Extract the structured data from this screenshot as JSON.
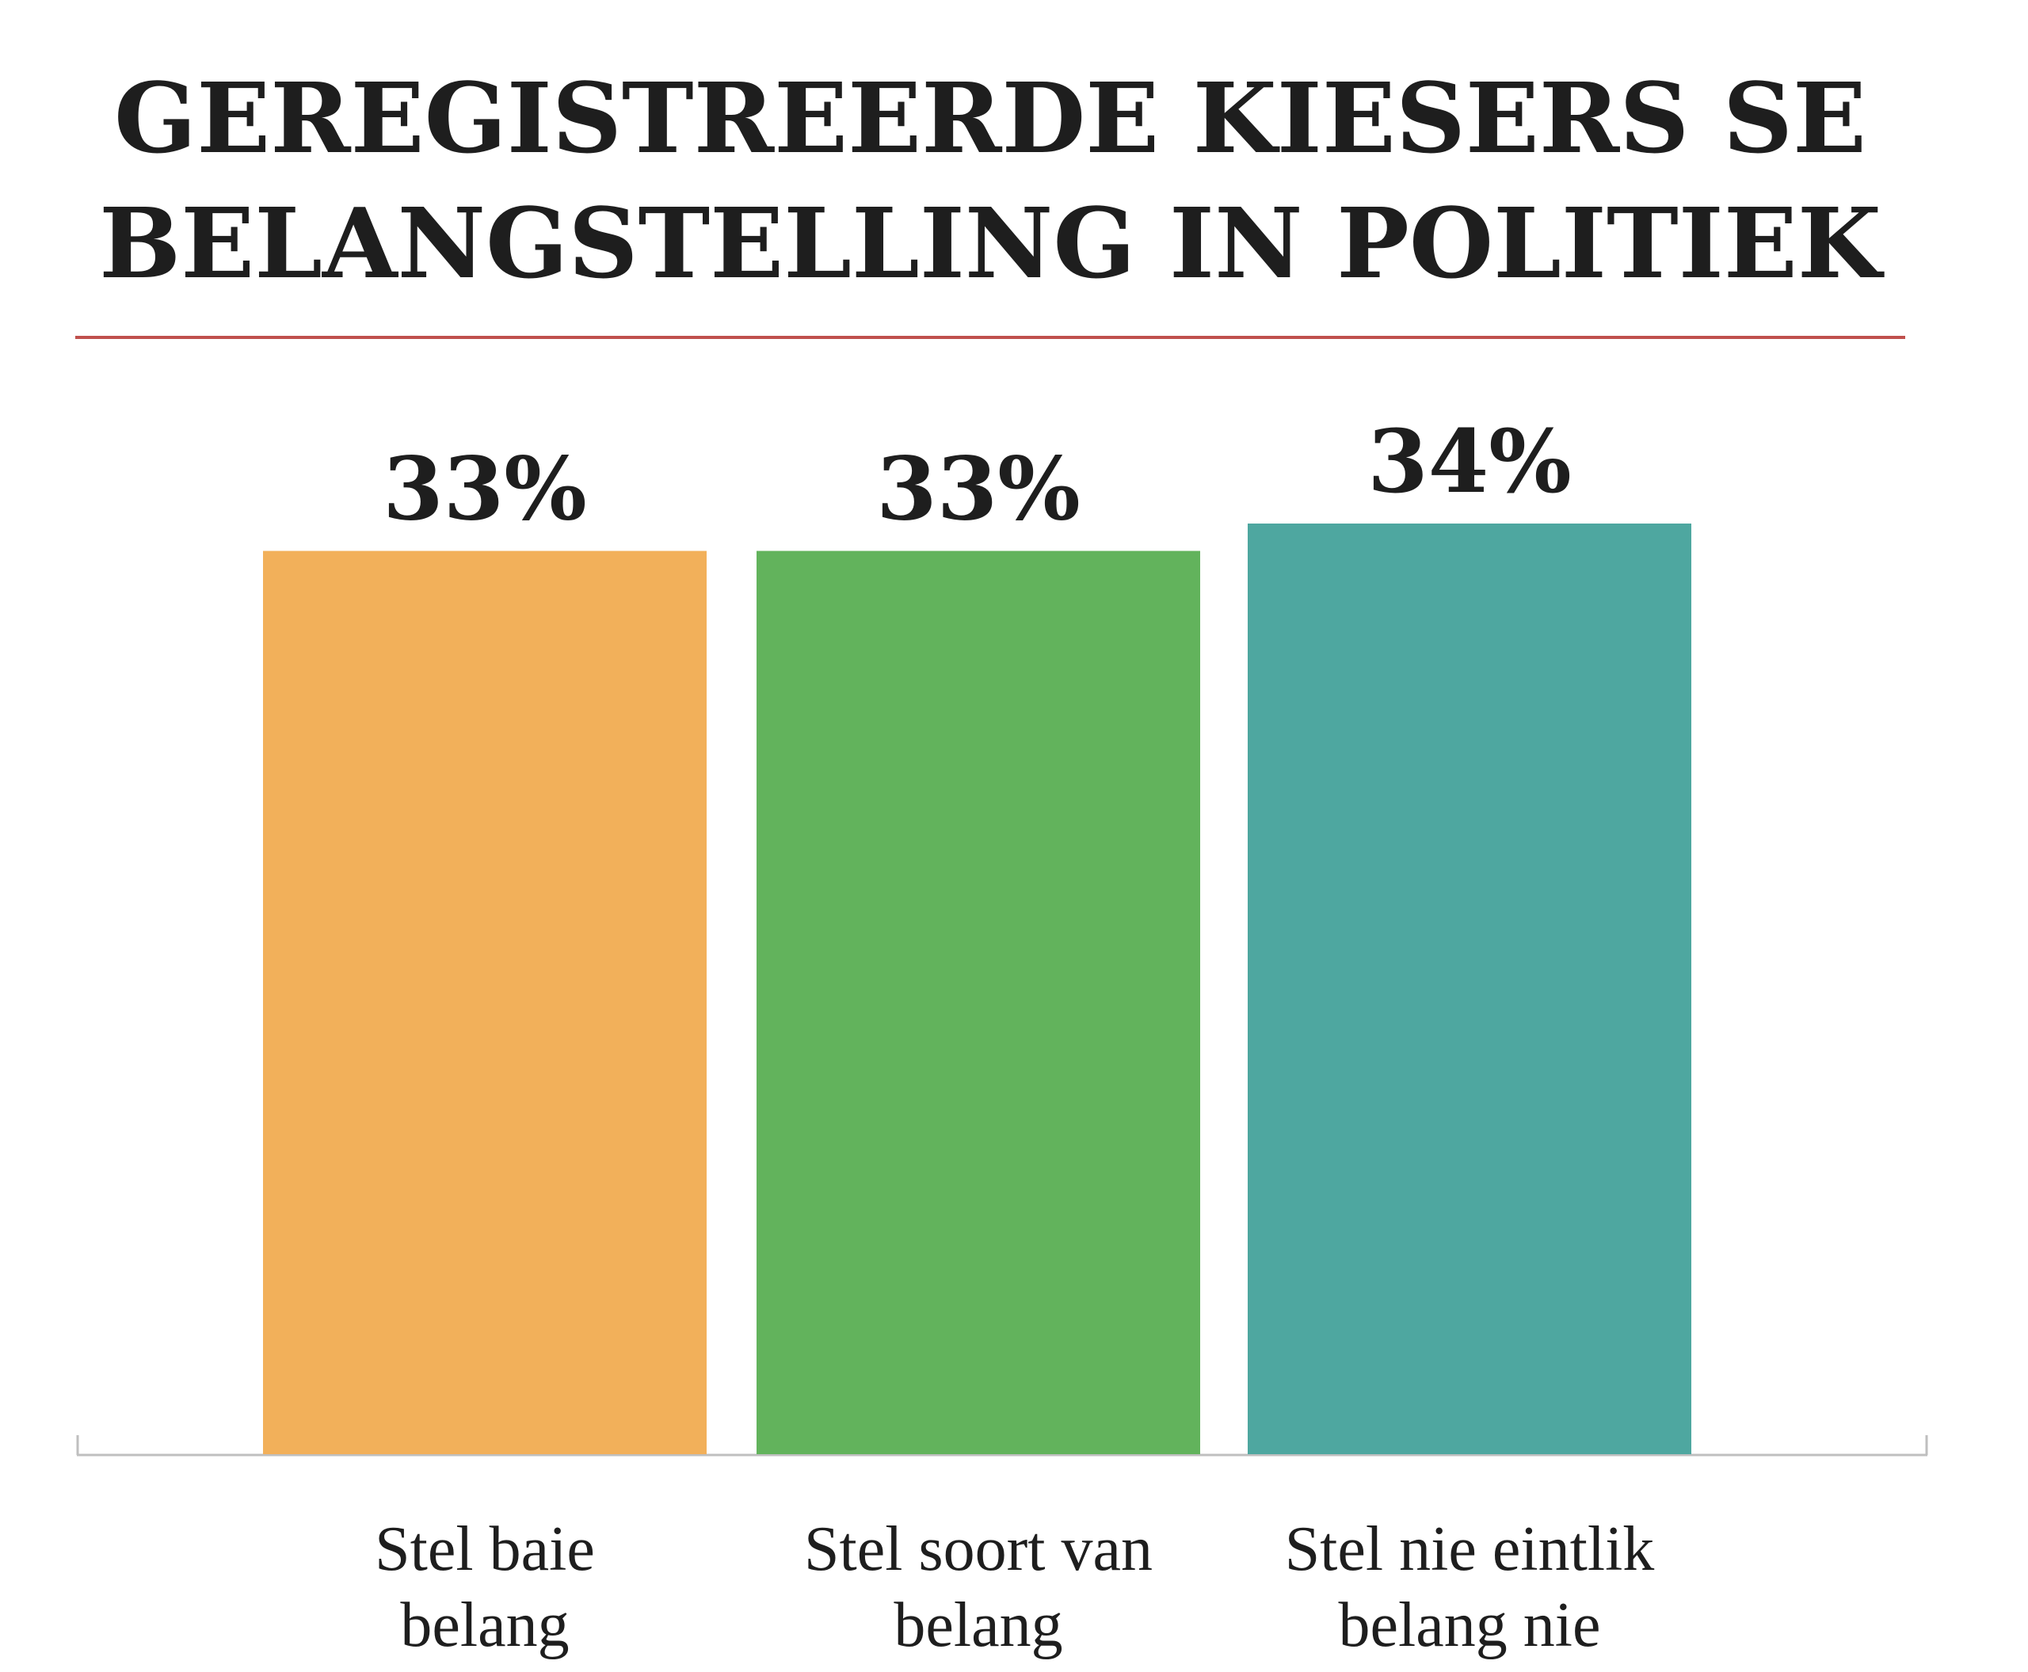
{
  "chart_data": {
    "type": "bar",
    "title_lines": [
      "GEREGISTREERDE KIESERS SE",
      "BELANGSTELLING IN POLITIEK"
    ],
    "categories": [
      [
        "Stel baie",
        "belang"
      ],
      [
        "Stel soort van",
        "belang"
      ],
      [
        "Stel nie eintlik",
        "belang nie"
      ]
    ],
    "values": [
      33,
      33,
      34
    ],
    "value_labels": [
      "33%",
      "33%",
      "34%"
    ],
    "colors": [
      "#F2B05A",
      "#62B35C",
      "#4EA7A0"
    ],
    "ylim": [
      0,
      34
    ],
    "grid": false,
    "legend": "none"
  }
}
